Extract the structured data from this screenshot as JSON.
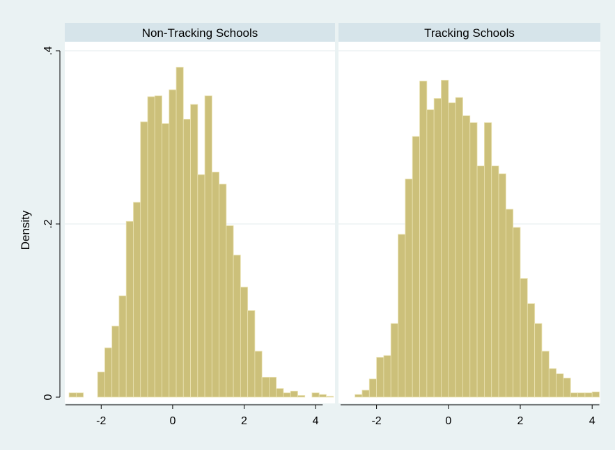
{
  "chart_data": {
    "type": "bar",
    "ylabel": "Density",
    "xlim": [
      -3,
      4.2
    ],
    "ylim": [
      0,
      0.4
    ],
    "x_ticks": [
      -2,
      0,
      2,
      4
    ],
    "x_tick_labels": [
      "-2",
      "0",
      "2",
      "4"
    ],
    "y_ticks": [
      0,
      0.2,
      0.4
    ],
    "y_tick_labels": [
      "0",
      ".2",
      ".4"
    ],
    "grid": true,
    "bar_color": "#ccc07a",
    "bar_edge_color": "#ebe3b4",
    "panels": [
      {
        "title": "Non-Tracking Schools",
        "bin_start": -2.9,
        "bin_width": 0.2,
        "values": [
          0.005,
          0.005,
          0,
          0,
          0.029,
          0.057,
          0.082,
          0.117,
          0.203,
          0.225,
          0.318,
          0.347,
          0.348,
          0.316,
          0.355,
          0.381,
          0.321,
          0.338,
          0.257,
          0.348,
          0.26,
          0.246,
          0.198,
          0.164,
          0.127,
          0.1,
          0.053,
          0.023,
          0.023,
          0.01,
          0.005,
          0.007,
          0.002,
          0,
          0.005,
          0.003,
          0.001
        ]
      },
      {
        "title": "Tracking Schools",
        "bin_start": -2.6,
        "bin_width": 0.2,
        "values": [
          0.003,
          0.008,
          0.021,
          0.046,
          0.048,
          0.085,
          0.188,
          0.252,
          0.301,
          0.365,
          0.332,
          0.345,
          0.366,
          0.34,
          0.346,
          0.325,
          0.317,
          0.267,
          0.317,
          0.267,
          0.258,
          0.217,
          0.196,
          0.137,
          0.108,
          0.085,
          0.053,
          0.033,
          0.027,
          0.022,
          0.005,
          0.005,
          0.005,
          0.006
        ]
      }
    ]
  }
}
